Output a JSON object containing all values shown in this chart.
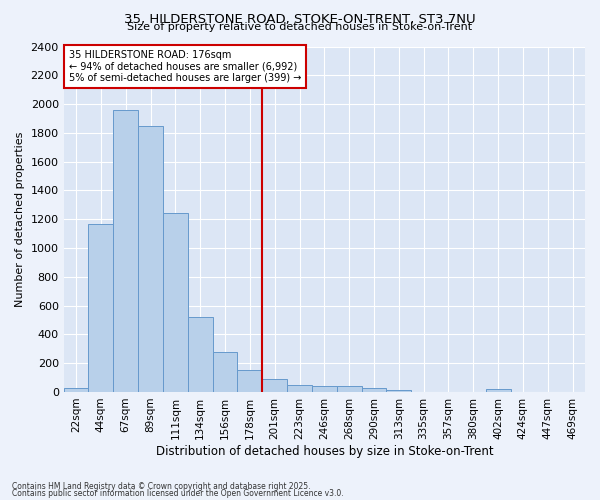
{
  "title1": "35, HILDERSTONE ROAD, STOKE-ON-TRENT, ST3 7NU",
  "title2": "Size of property relative to detached houses in Stoke-on-Trent",
  "xlabel": "Distribution of detached houses by size in Stoke-on-Trent",
  "ylabel": "Number of detached properties",
  "bar_labels": [
    "22sqm",
    "44sqm",
    "67sqm",
    "89sqm",
    "111sqm",
    "134sqm",
    "156sqm",
    "178sqm",
    "201sqm",
    "223sqm",
    "246sqm",
    "268sqm",
    "290sqm",
    "313sqm",
    "335sqm",
    "357sqm",
    "380sqm",
    "402sqm",
    "424sqm",
    "447sqm",
    "469sqm"
  ],
  "bar_values": [
    30,
    1170,
    1960,
    1850,
    1240,
    520,
    275,
    155,
    90,
    50,
    42,
    42,
    25,
    12,
    0,
    0,
    0,
    18,
    0,
    0,
    0
  ],
  "bar_color": "#b8d0ea",
  "bar_edge_color": "#6699cc",
  "bg_color": "#dce6f5",
  "fig_bg_color": "#edf2fb",
  "vline_color": "#cc0000",
  "annotation_title": "35 HILDERSTONE ROAD: 176sqm",
  "annotation_line1": "← 94% of detached houses are smaller (6,992)",
  "annotation_line2": "5% of semi-detached houses are larger (399) →",
  "annotation_box_color": "#cc0000",
  "ylim": [
    0,
    2400
  ],
  "yticks": [
    0,
    200,
    400,
    600,
    800,
    1000,
    1200,
    1400,
    1600,
    1800,
    2000,
    2200,
    2400
  ],
  "footer1": "Contains HM Land Registry data © Crown copyright and database right 2025.",
  "footer2": "Contains public sector information licensed under the Open Government Licence v3.0."
}
